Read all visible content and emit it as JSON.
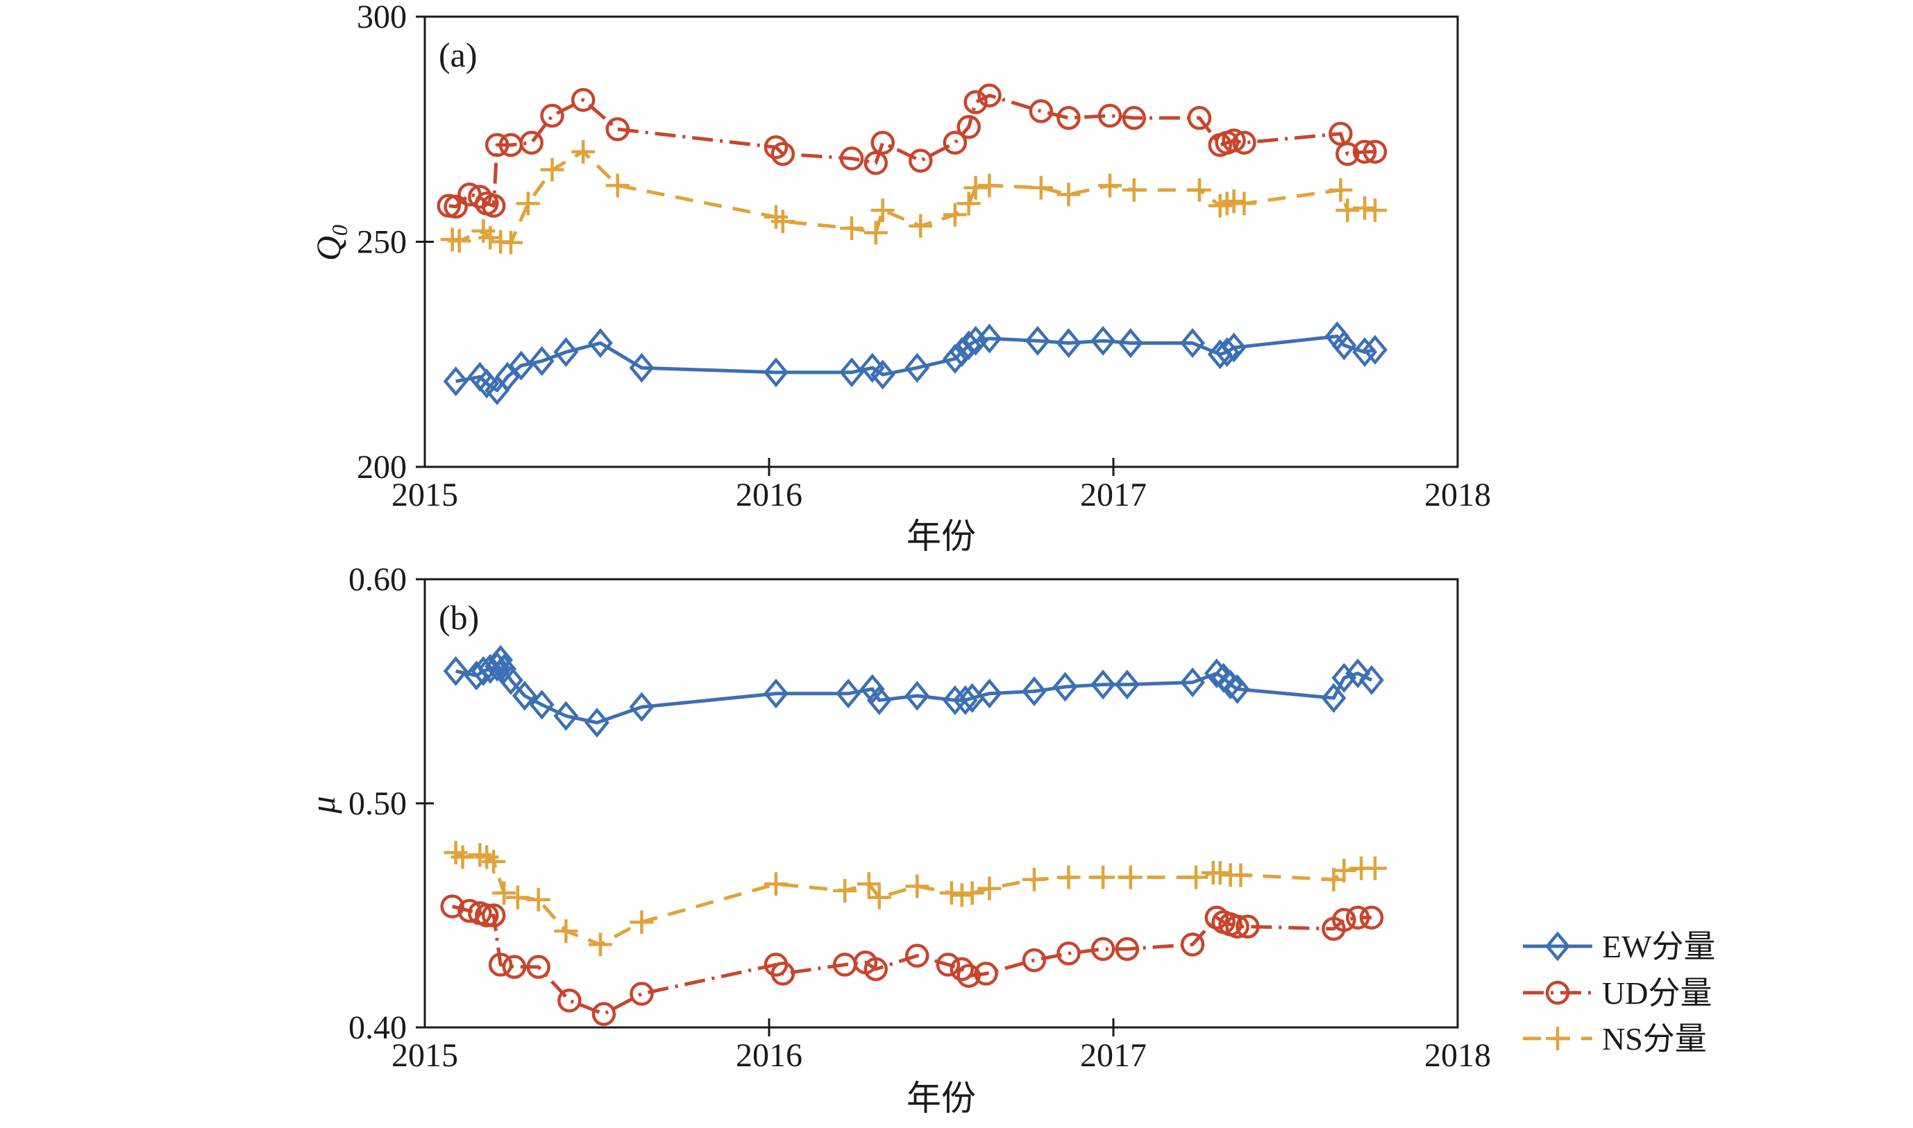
{
  "figure": {
    "xlabel": "年份",
    "panel_a_label": "(a)",
    "panel_b_label": "(b)",
    "ylabel_a_main": "Q",
    "ylabel_a_sub": "0",
    "ylabel_b": "μ",
    "colors": {
      "ew": "#3C6FB4",
      "ud": "#C8452C",
      "ns": "#E0A33A",
      "axis": "#1a1a1a"
    }
  },
  "legend": {
    "items": [
      {
        "label": "EW分量",
        "marker": "diamond",
        "line": "solid",
        "color": "#3C6FB4"
      },
      {
        "label": "UD分量",
        "marker": "circle",
        "line": "dashdot",
        "color": "#C8452C"
      },
      {
        "label": "NS分量",
        "marker": "plus",
        "line": "dashed",
        "color": "#E0A33A"
      }
    ],
    "position": "bottom-right"
  },
  "chart_data": [
    {
      "type": "line",
      "panel": "(a)",
      "xlabel": "年份",
      "ylabel": "Q0",
      "xlim": [
        2015,
        2018
      ],
      "ylim": [
        200,
        300
      ],
      "xticks": [
        "2015",
        "2016",
        "2017",
        "2018"
      ],
      "yticks": [
        "300",
        "250",
        "200"
      ],
      "ytick_values": [
        300,
        250,
        200
      ],
      "grid": false,
      "legend_position": "outside-bottom-right",
      "series": [
        {
          "name": "EW分量",
          "marker": "diamond",
          "line": "solid",
          "color": "#3C6FB4",
          "points": [
            [
              2015.09,
              219
            ],
            [
              2015.16,
              220
            ],
            [
              2015.18,
              218.5
            ],
            [
              2015.21,
              217
            ],
            [
              2015.24,
              220
            ],
            [
              2015.28,
              222.5
            ],
            [
              2015.34,
              223.5
            ],
            [
              2015.41,
              225.5
            ],
            [
              2015.51,
              227.5
            ],
            [
              2015.63,
              222
            ],
            [
              2016.02,
              221
            ],
            [
              2016.24,
              221
            ],
            [
              2016.3,
              222
            ],
            [
              2016.33,
              220.5
            ],
            [
              2016.43,
              222
            ],
            [
              2016.54,
              224
            ],
            [
              2016.56,
              225.5
            ],
            [
              2016.58,
              227
            ],
            [
              2016.6,
              228
            ],
            [
              2016.64,
              228.5
            ],
            [
              2016.78,
              228
            ],
            [
              2016.87,
              227.5
            ],
            [
              2016.97,
              228
            ],
            [
              2017.05,
              227.5
            ],
            [
              2017.23,
              227.5
            ],
            [
              2017.31,
              225
            ],
            [
              2017.33,
              225.5
            ],
            [
              2017.35,
              226.5
            ],
            [
              2017.65,
              229
            ],
            [
              2017.67,
              227
            ],
            [
              2017.73,
              225.5
            ],
            [
              2017.76,
              226
            ]
          ]
        },
        {
          "name": "UD分量",
          "marker": "circle",
          "line": "dashdot",
          "color": "#C8452C",
          "points": [
            [
              2015.07,
              258
            ],
            [
              2015.09,
              257.8
            ],
            [
              2015.13,
              260.5
            ],
            [
              2015.16,
              260
            ],
            [
              2015.18,
              258.5
            ],
            [
              2015.2,
              258
            ],
            [
              2015.21,
              271.5
            ],
            [
              2015.25,
              271.5
            ],
            [
              2015.31,
              272
            ],
            [
              2015.37,
              278
            ],
            [
              2015.46,
              281.5
            ],
            [
              2015.56,
              275
            ],
            [
              2016.02,
              271
            ],
            [
              2016.04,
              269.5
            ],
            [
              2016.24,
              268.5
            ],
            [
              2016.31,
              267.5
            ],
            [
              2016.33,
              272
            ],
            [
              2016.44,
              268
            ],
            [
              2016.54,
              272
            ],
            [
              2016.58,
              275.5
            ],
            [
              2016.6,
              281
            ],
            [
              2016.64,
              282.5
            ],
            [
              2016.79,
              279
            ],
            [
              2016.87,
              277.5
            ],
            [
              2016.99,
              278
            ],
            [
              2017.06,
              277.5
            ],
            [
              2017.25,
              277.5
            ],
            [
              2017.31,
              271.5
            ],
            [
              2017.33,
              272
            ],
            [
              2017.35,
              272.5
            ],
            [
              2017.38,
              272
            ],
            [
              2017.66,
              274
            ],
            [
              2017.68,
              269.5
            ],
            [
              2017.73,
              270
            ],
            [
              2017.76,
              270
            ]
          ]
        },
        {
          "name": "NS分量",
          "marker": "plus",
          "line": "dashed",
          "color": "#E0A33A",
          "points": [
            [
              2015.08,
              250.5
            ],
            [
              2015.1,
              250.2
            ],
            [
              2015.17,
              252.4
            ],
            [
              2015.19,
              250.9
            ],
            [
              2015.22,
              250
            ],
            [
              2015.25,
              249.8
            ],
            [
              2015.3,
              258.5
            ],
            [
              2015.37,
              266
            ],
            [
              2015.46,
              270
            ],
            [
              2015.56,
              262.5
            ],
            [
              2016.02,
              255.5
            ],
            [
              2016.04,
              254.5
            ],
            [
              2016.24,
              253
            ],
            [
              2016.31,
              252
            ],
            [
              2016.33,
              257
            ],
            [
              2016.44,
              253.5
            ],
            [
              2016.54,
              256
            ],
            [
              2016.58,
              258.5
            ],
            [
              2016.6,
              262
            ],
            [
              2016.64,
              262.5
            ],
            [
              2016.79,
              262
            ],
            [
              2016.87,
              260.5
            ],
            [
              2016.99,
              262.5
            ],
            [
              2017.06,
              261.5
            ],
            [
              2017.25,
              261.5
            ],
            [
              2017.31,
              258
            ],
            [
              2017.33,
              258.5
            ],
            [
              2017.35,
              259
            ],
            [
              2017.38,
              258.5
            ],
            [
              2017.66,
              261.5
            ],
            [
              2017.68,
              257
            ],
            [
              2017.73,
              257.5
            ],
            [
              2017.76,
              257
            ]
          ]
        }
      ]
    },
    {
      "type": "line",
      "panel": "(b)",
      "xlabel": "年份",
      "ylabel": "μ",
      "xlim": [
        2015,
        2018
      ],
      "ylim": [
        0.4,
        0.6
      ],
      "xticks": [
        "2015",
        "2016",
        "2017",
        "2018"
      ],
      "yticks": [
        "0.60",
        "0.50",
        "0.40"
      ],
      "ytick_values": [
        0.6,
        0.5,
        0.4
      ],
      "grid": false,
      "series": [
        {
          "name": "EW分量",
          "marker": "diamond",
          "line": "solid",
          "color": "#3C6FB4",
          "points": [
            [
              2015.09,
              0.559
            ],
            [
              2015.15,
              0.557
            ],
            [
              2015.17,
              0.559
            ],
            [
              2015.19,
              0.56
            ],
            [
              2015.21,
              0.561
            ],
            [
              2015.22,
              0.564
            ],
            [
              2015.23,
              0.56
            ],
            [
              2015.25,
              0.555
            ],
            [
              2015.29,
              0.548
            ],
            [
              2015.34,
              0.544
            ],
            [
              2015.41,
              0.539
            ],
            [
              2015.5,
              0.536
            ],
            [
              2015.63,
              0.543
            ],
            [
              2016.02,
              0.549
            ],
            [
              2016.23,
              0.549
            ],
            [
              2016.3,
              0.551
            ],
            [
              2016.32,
              0.546
            ],
            [
              2016.43,
              0.548
            ],
            [
              2016.54,
              0.546
            ],
            [
              2016.57,
              0.546
            ],
            [
              2016.59,
              0.547
            ],
            [
              2016.64,
              0.549
            ],
            [
              2016.77,
              0.55
            ],
            [
              2016.86,
              0.552
            ],
            [
              2016.97,
              0.553
            ],
            [
              2017.04,
              0.553
            ],
            [
              2017.23,
              0.554
            ],
            [
              2017.3,
              0.558
            ],
            [
              2017.32,
              0.556
            ],
            [
              2017.34,
              0.553
            ],
            [
              2017.36,
              0.551
            ],
            [
              2017.64,
              0.547
            ],
            [
              2017.67,
              0.556
            ],
            [
              2017.71,
              0.558
            ],
            [
              2017.75,
              0.555
            ]
          ]
        },
        {
          "name": "UD分量",
          "marker": "circle",
          "line": "dashdot",
          "color": "#C8452C",
          "points": [
            [
              2015.08,
              0.454
            ],
            [
              2015.13,
              0.452
            ],
            [
              2015.16,
              0.451
            ],
            [
              2015.18,
              0.45
            ],
            [
              2015.2,
              0.45
            ],
            [
              2015.22,
              0.428
            ],
            [
              2015.26,
              0.427
            ],
            [
              2015.33,
              0.427
            ],
            [
              2015.42,
              0.412
            ],
            [
              2015.52,
              0.406
            ],
            [
              2015.63,
              0.415
            ],
            [
              2016.02,
              0.428
            ],
            [
              2016.04,
              0.424
            ],
            [
              2016.22,
              0.428
            ],
            [
              2016.28,
              0.429
            ],
            [
              2016.31,
              0.426
            ],
            [
              2016.43,
              0.432
            ],
            [
              2016.52,
              0.428
            ],
            [
              2016.56,
              0.426
            ],
            [
              2016.58,
              0.423
            ],
            [
              2016.63,
              0.424
            ],
            [
              2016.77,
              0.43
            ],
            [
              2016.87,
              0.433
            ],
            [
              2016.97,
              0.435
            ],
            [
              2017.04,
              0.435
            ],
            [
              2017.23,
              0.437
            ],
            [
              2017.3,
              0.449
            ],
            [
              2017.32,
              0.447
            ],
            [
              2017.34,
              0.446
            ],
            [
              2017.36,
              0.445
            ],
            [
              2017.39,
              0.445
            ],
            [
              2017.64,
              0.444
            ],
            [
              2017.67,
              0.448
            ],
            [
              2017.71,
              0.449
            ],
            [
              2017.75,
              0.449
            ]
          ]
        },
        {
          "name": "NS分量",
          "marker": "plus",
          "line": "dashed",
          "color": "#E0A33A",
          "points": [
            [
              2015.09,
              0.478
            ],
            [
              2015.11,
              0.476
            ],
            [
              2015.16,
              0.477
            ],
            [
              2015.18,
              0.476
            ],
            [
              2015.2,
              0.474
            ],
            [
              2015.23,
              0.46
            ],
            [
              2015.27,
              0.458
            ],
            [
              2015.33,
              0.457
            ],
            [
              2015.41,
              0.443
            ],
            [
              2015.51,
              0.437
            ],
            [
              2015.63,
              0.447
            ],
            [
              2016.02,
              0.464
            ],
            [
              2016.22,
              0.461
            ],
            [
              2016.29,
              0.464
            ],
            [
              2016.32,
              0.458
            ],
            [
              2016.43,
              0.463
            ],
            [
              2016.53,
              0.46
            ],
            [
              2016.56,
              0.459
            ],
            [
              2016.59,
              0.46
            ],
            [
              2016.64,
              0.462
            ],
            [
              2016.77,
              0.466
            ],
            [
              2016.87,
              0.467
            ],
            [
              2016.97,
              0.467
            ],
            [
              2017.05,
              0.467
            ],
            [
              2017.24,
              0.467
            ],
            [
              2017.29,
              0.469
            ],
            [
              2017.31,
              0.469
            ],
            [
              2017.34,
              0.468
            ],
            [
              2017.37,
              0.468
            ],
            [
              2017.64,
              0.466
            ],
            [
              2017.67,
              0.47
            ],
            [
              2017.72,
              0.471
            ],
            [
              2017.76,
              0.471
            ]
          ]
        }
      ]
    }
  ]
}
